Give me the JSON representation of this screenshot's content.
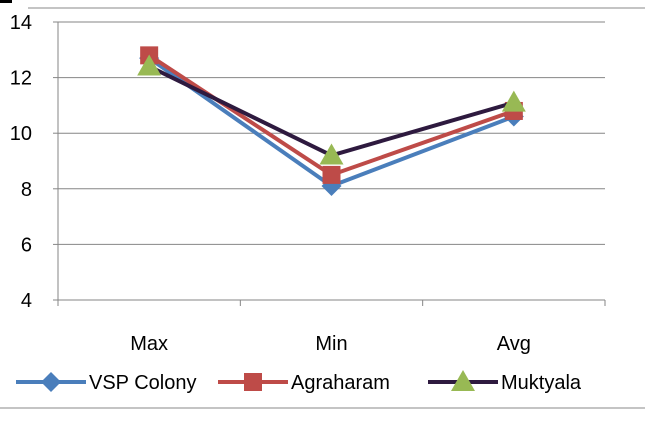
{
  "chart_data": {
    "type": "line",
    "categories": [
      "Max",
      "Min",
      "Avg"
    ],
    "series": [
      {
        "name": "VSP Colony",
        "values": [
          12.7,
          8.1,
          10.6
        ],
        "color": "#4a7ebb",
        "marker": "diamond"
      },
      {
        "name": "Agraharam",
        "values": [
          12.8,
          8.5,
          10.8
        ],
        "color": "#be4b48",
        "marker": "square"
      },
      {
        "name": "Muktyala",
        "values": [
          12.4,
          9.2,
          11.1
        ],
        "color": "#2e1a3f",
        "line_color": "#2e1a3f",
        "marker": "triangle",
        "marker_color": "#98b954"
      }
    ],
    "yticks": [
      "4",
      "6",
      "8",
      "10",
      "12",
      "14"
    ],
    "ylim": [
      4,
      14
    ],
    "grid": true,
    "legend": "bottom",
    "title": "",
    "xlabel": "",
    "ylabel": ""
  }
}
